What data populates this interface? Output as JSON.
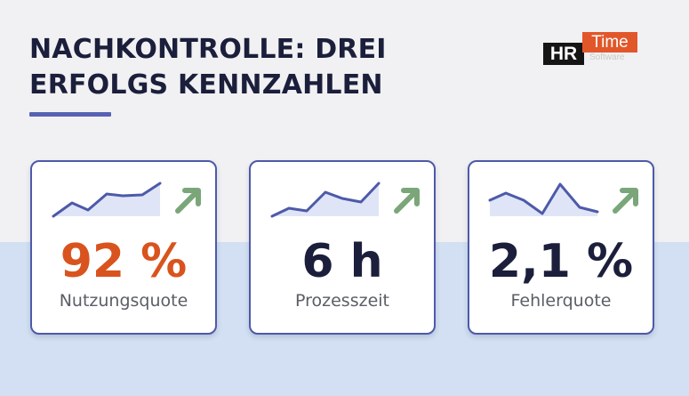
{
  "title": {
    "line1": "NACHKONTROLLE: DREI",
    "line2": "ERFOLGS KENNZAHLEN"
  },
  "logo": {
    "hr": "HR",
    "time": "Time",
    "software": "Software"
  },
  "cards": [
    {
      "value": "92 %",
      "label": "Nutzungsquote",
      "value_color": "#d9531e",
      "trend_icon": "arrow-up-right-icon"
    },
    {
      "value": "6 h",
      "label": "Prozesszeit",
      "value_color": "#1b1f3b",
      "trend_icon": "arrow-up-right-icon"
    },
    {
      "value": "2,1 %",
      "label": "Fehlerquote",
      "value_color": "#1b1f3b",
      "trend_icon": "arrow-up-right-icon"
    }
  ],
  "colors": {
    "accent": "#5663b3",
    "arrow": "#7aa67a",
    "sparkline": "#4d5aa8",
    "sparkline_fill": "#dfe5f7"
  }
}
